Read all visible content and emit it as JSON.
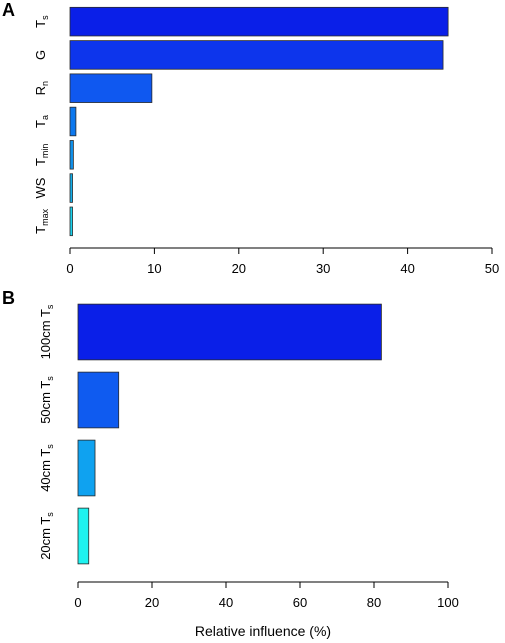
{
  "chart_data": [
    {
      "panel": "A",
      "type": "bar",
      "orientation": "horizontal",
      "categories": [
        {
          "base": "T",
          "sub": "s"
        },
        {
          "base": "G",
          "sub": ""
        },
        {
          "base": "R",
          "sub": "n"
        },
        {
          "base": "T",
          "sub": "a"
        },
        {
          "base": "T",
          "sub": "min"
        },
        {
          "base": "WS",
          "sub": ""
        },
        {
          "base": "T",
          "sub": "max"
        }
      ],
      "values": [
        44.8,
        44.2,
        9.7,
        0.7,
        0.4,
        0.3,
        0.3
      ],
      "colors": [
        "#0a1fe8",
        "#0d35ec",
        "#0f58f0",
        "#0c78ee",
        "#1090ea",
        "#14aeea",
        "#1ad2ee"
      ],
      "xlim": [
        0,
        50
      ],
      "xticks": [
        0,
        10,
        20,
        30,
        40,
        50
      ],
      "xlabel": "",
      "grid": false,
      "legend": "none"
    },
    {
      "panel": "B",
      "type": "bar",
      "orientation": "horizontal",
      "categories": [
        {
          "base": "100cm T",
          "sub": "s"
        },
        {
          "base": "50cm T",
          "sub": "s"
        },
        {
          "base": "40cm T",
          "sub": "s"
        },
        {
          "base": "20cm T",
          "sub": "s"
        }
      ],
      "values": [
        82.0,
        11.0,
        4.6,
        2.9
      ],
      "colors": [
        "#0a1fe8",
        "#0f5bf0",
        "#0fa2f0",
        "#1ef2f0"
      ],
      "xlim": [
        0,
        100
      ],
      "xticks": [
        0,
        20,
        40,
        60,
        80,
        100
      ],
      "xlabel": "Relative influence (%)",
      "grid": false,
      "legend": "none"
    }
  ]
}
